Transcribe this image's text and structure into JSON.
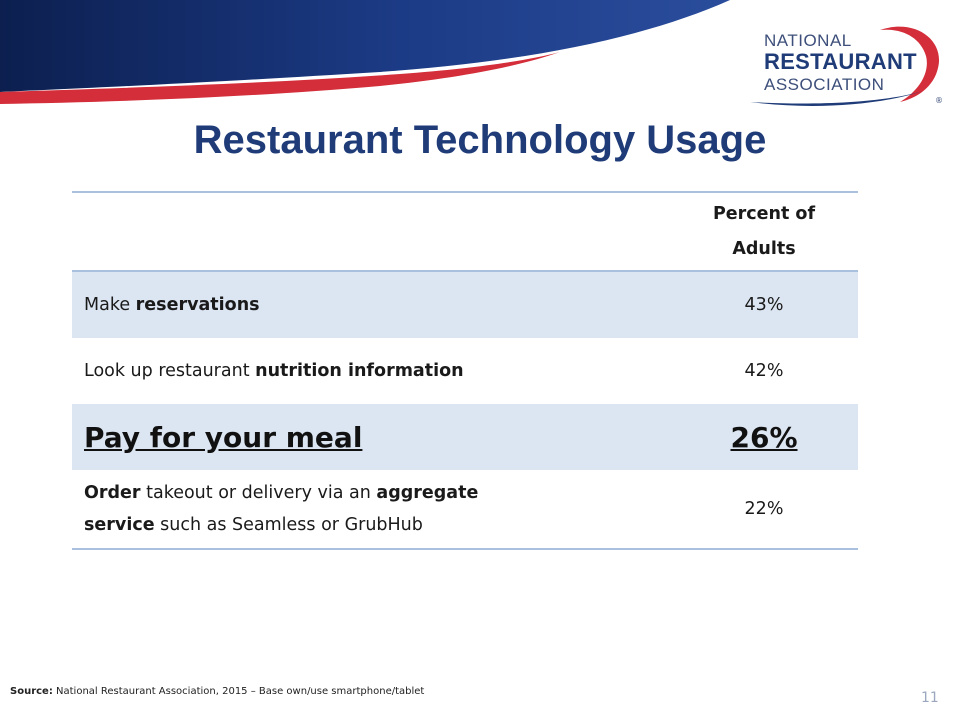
{
  "logo": {
    "line1": "NATIONAL",
    "line2": "RESTAURANT",
    "line3": "ASSOCIATION",
    "registered": "®",
    "colors": {
      "navy": "#1f3c78",
      "red": "#d42e3a"
    }
  },
  "title": "Restaurant Technology Usage",
  "table": {
    "header": {
      "label": "",
      "value_line1": "Percent of",
      "value_line2": "Adults"
    },
    "rows": [
      {
        "prefix": "Make ",
        "bold": "reservations",
        "suffix": "",
        "value": "43%"
      },
      {
        "prefix": "Look up restaurant ",
        "bold": "nutrition information",
        "suffix": "",
        "value": "42%"
      },
      {
        "label": "Pay for your meal",
        "value": "26%"
      },
      {
        "bold1": "Order",
        "text1": " takeout or delivery via an ",
        "bold2": "aggregate",
        "bold3": "service",
        "text2": " such as Seamless or GrubHub",
        "value": "22%"
      }
    ]
  },
  "footer": {
    "source_label": "Source:",
    "source_text": " National Restaurant Association, 2015 – Base own/use smartphone/tablet",
    "page_number": "11"
  }
}
